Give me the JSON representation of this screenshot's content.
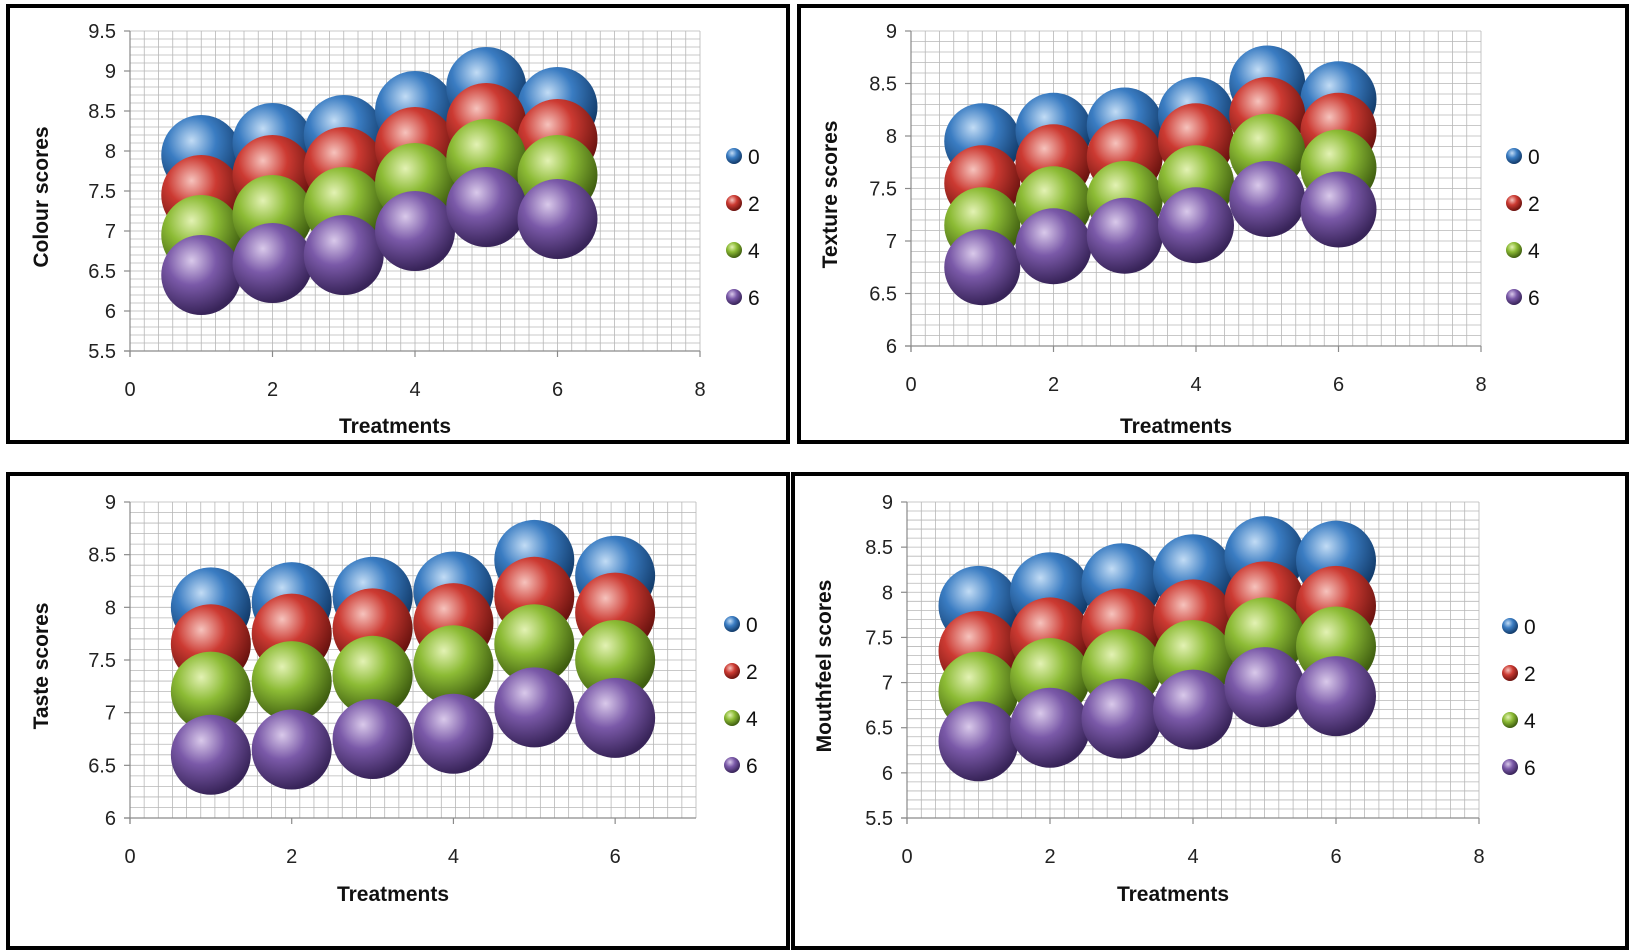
{
  "colors": {
    "s0": [
      "#c2dcf5",
      "#3a7cc2",
      "#123b6a"
    ],
    "s2": [
      "#f6c3bd",
      "#cc3a32",
      "#6b130f"
    ],
    "s4": [
      "#e3f2b4",
      "#8cbb35",
      "#3f5e10"
    ],
    "s6": [
      "#d9c9ea",
      "#7a59a8",
      "#382459"
    ],
    "grid": "#b7b7b7",
    "axis": "#8a8a8a"
  },
  "chart_data": [
    {
      "type": "bubble",
      "ylabel": "Colour scores",
      "xlabel": "Treatments",
      "xlim": [
        0,
        8
      ],
      "xticks": [
        0,
        2,
        4,
        6,
        8
      ],
      "ylim": [
        5.5,
        9.5
      ],
      "yticks": [
        5.5,
        6,
        6.5,
        7,
        7.5,
        8,
        8.5,
        9,
        9.5
      ],
      "x": [
        1,
        2,
        3,
        4,
        5,
        6
      ],
      "series": [
        {
          "name": "0",
          "values": [
            7.95,
            8.1,
            8.2,
            8.5,
            8.8,
            8.55
          ]
        },
        {
          "name": "2",
          "values": [
            7.45,
            7.7,
            7.8,
            8.05,
            8.35,
            8.15
          ]
        },
        {
          "name": "4",
          "values": [
            6.95,
            7.2,
            7.3,
            7.6,
            7.9,
            7.7
          ]
        },
        {
          "name": "6",
          "values": [
            6.45,
            6.6,
            6.7,
            7.0,
            7.3,
            7.15
          ]
        }
      ]
    },
    {
      "type": "bubble",
      "ylabel": "Texture scores",
      "xlabel": "Treatments",
      "xlim": [
        0,
        8
      ],
      "xticks": [
        0,
        2,
        4,
        6,
        8
      ],
      "ylim": [
        6,
        9
      ],
      "yticks": [
        6,
        6.5,
        7,
        7.5,
        8,
        8.5,
        9
      ],
      "x": [
        1,
        2,
        3,
        4,
        5,
        6
      ],
      "series": [
        {
          "name": "0",
          "values": [
            7.95,
            8.05,
            8.1,
            8.2,
            8.5,
            8.35
          ]
        },
        {
          "name": "2",
          "values": [
            7.55,
            7.75,
            7.8,
            7.95,
            8.2,
            8.05
          ]
        },
        {
          "name": "4",
          "values": [
            7.15,
            7.35,
            7.4,
            7.55,
            7.85,
            7.7
          ]
        },
        {
          "name": "6",
          "values": [
            6.75,
            6.95,
            7.05,
            7.15,
            7.4,
            7.3
          ]
        }
      ]
    },
    {
      "type": "bubble",
      "ylabel": "Taste scores",
      "xlabel": "Treatments",
      "xlim": [
        0,
        7
      ],
      "xticks": [
        0,
        2,
        4,
        6
      ],
      "ylim": [
        6,
        9
      ],
      "yticks": [
        6,
        6.5,
        7,
        7.5,
        8,
        8.5,
        9
      ],
      "x": [
        1,
        2,
        3,
        4,
        5,
        6
      ],
      "series": [
        {
          "name": "0",
          "values": [
            8.0,
            8.05,
            8.1,
            8.15,
            8.45,
            8.3
          ]
        },
        {
          "name": "2",
          "values": [
            7.65,
            7.75,
            7.8,
            7.85,
            8.1,
            7.95
          ]
        },
        {
          "name": "4",
          "values": [
            7.2,
            7.3,
            7.35,
            7.45,
            7.65,
            7.5
          ]
        },
        {
          "name": "6",
          "values": [
            6.6,
            6.65,
            6.75,
            6.8,
            7.05,
            6.95
          ]
        }
      ]
    },
    {
      "type": "bubble",
      "ylabel": "Mouthfeel scores",
      "xlabel": "Treatments",
      "xlim": [
        0,
        8
      ],
      "xticks": [
        0,
        2,
        4,
        6,
        8
      ],
      "ylim": [
        5.5,
        9
      ],
      "yticks": [
        5.5,
        6,
        6.5,
        7,
        7.5,
        8,
        8.5,
        9
      ],
      "x": [
        1,
        2,
        3,
        4,
        5,
        6
      ],
      "series": [
        {
          "name": "0",
          "values": [
            7.85,
            8.0,
            8.1,
            8.2,
            8.4,
            8.35
          ]
        },
        {
          "name": "2",
          "values": [
            7.35,
            7.5,
            7.6,
            7.7,
            7.9,
            7.85
          ]
        },
        {
          "name": "4",
          "values": [
            6.9,
            7.05,
            7.15,
            7.25,
            7.5,
            7.4
          ]
        },
        {
          "name": "6",
          "values": [
            6.35,
            6.5,
            6.6,
            6.7,
            6.95,
            6.85
          ]
        }
      ]
    }
  ]
}
